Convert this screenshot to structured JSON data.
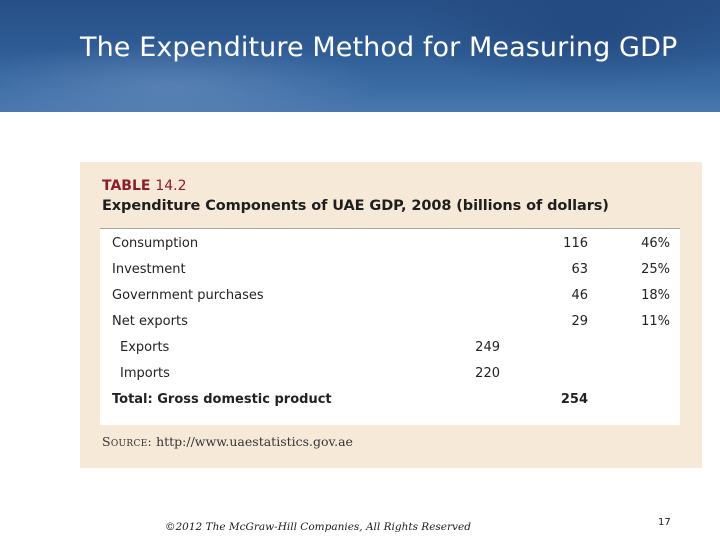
{
  "slide": {
    "title": "The Expenditure Method for Measuring GDP",
    "footer": "©2012 The McGraw-Hill Companies, All Rights Reserved",
    "page_number": "17"
  },
  "table": {
    "label_word": "TABLE",
    "label_number": "14.2",
    "title": "Expenditure Components of UAE GDP, 2008 (billions of dollars)",
    "rows": [
      {
        "label": "Consumption",
        "sub_value": "",
        "value": "116",
        "percent": "46%"
      },
      {
        "label": "Investment",
        "sub_value": "",
        "value": "63",
        "percent": "25%"
      },
      {
        "label": "Government purchases",
        "sub_value": "",
        "value": "46",
        "percent": "18%"
      },
      {
        "label": "Net exports",
        "sub_value": "",
        "value": "29",
        "percent": "11%"
      },
      {
        "label": "Exports",
        "sub_value": "249",
        "value": "",
        "percent": ""
      },
      {
        "label": "Imports",
        "sub_value": "220",
        "value": "",
        "percent": ""
      },
      {
        "label": "Total: Gross domestic product",
        "sub_value": "",
        "value": "254",
        "percent": ""
      }
    ],
    "source_label": "Source:",
    "source_url": "http://www.uaestatistics.gov.ae"
  },
  "colors": {
    "header_blue": "#2f5c95",
    "panel_tan": "#f7e9d8",
    "label_red": "#8b1d2c"
  }
}
